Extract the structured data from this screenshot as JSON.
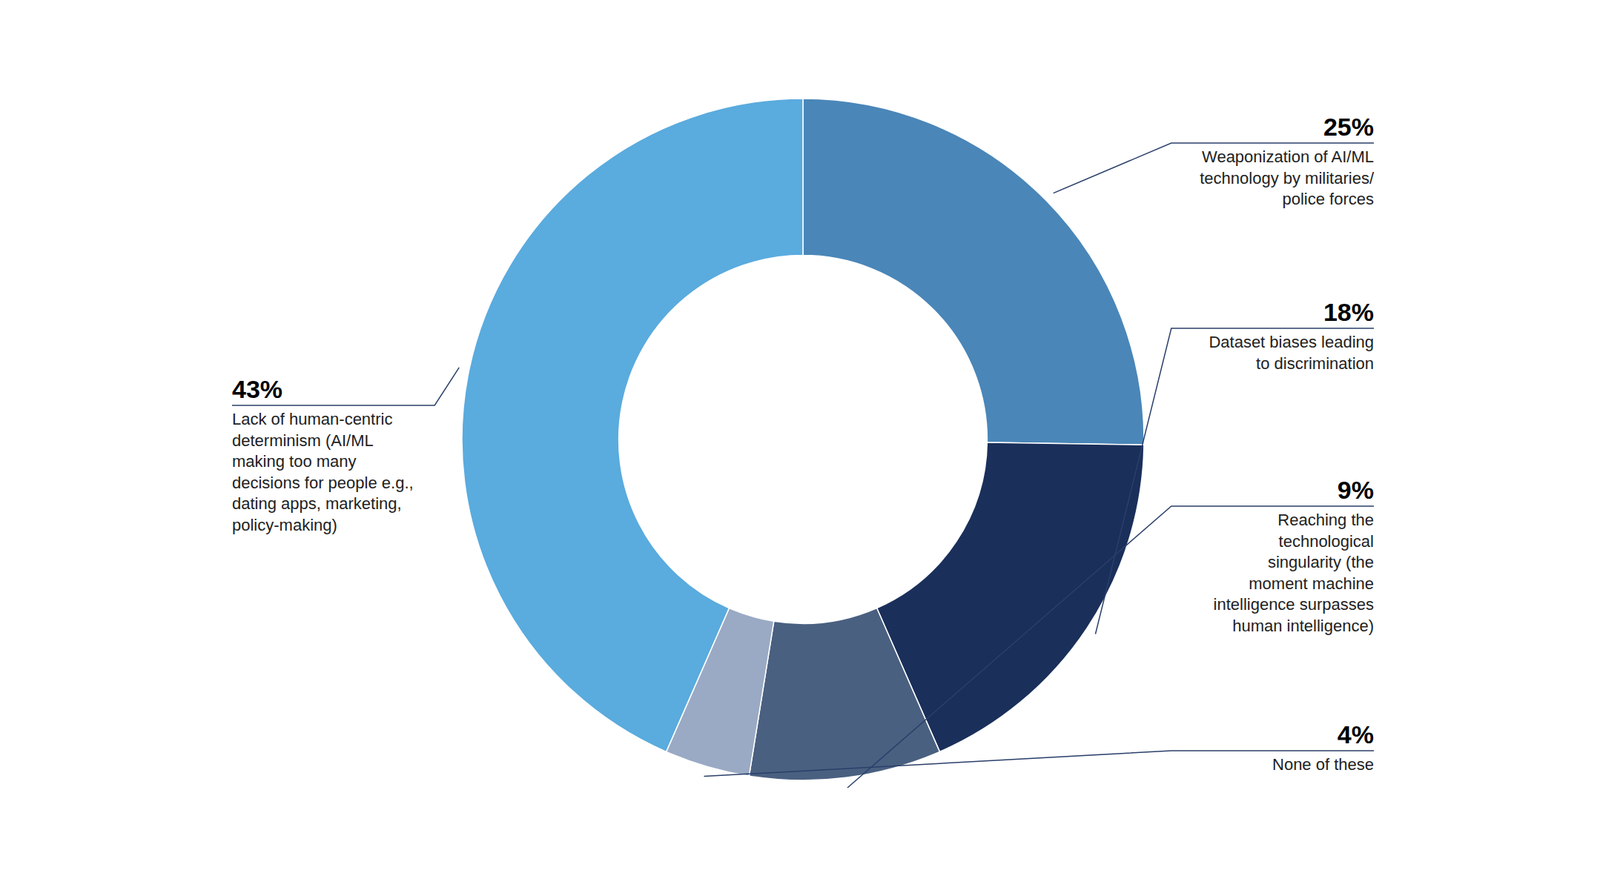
{
  "chart_data": {
    "type": "donut",
    "categories": [
      "Weaponization of AI/ML\ntechnology by militaries/\npolice forces",
      "Dataset biases leading\nto discrimination",
      "Reaching the\ntechnological\nsingularity (the\nmoment machine\nintelligence surpasses\nhuman intelligence)",
      "None of these",
      "Lack of human-centric\ndeterminism (AI/ML\nmaking too many\ndecisions for people e.g.,\ndating apps, marketing,\npolicy-making)"
    ],
    "values": [
      25,
      18,
      9,
      4,
      43
    ],
    "value_labels": [
      "25%",
      "18%",
      "9%",
      "4%",
      "43%"
    ],
    "colors": [
      "#4a86b8",
      "#1a2f5a",
      "#4a6080",
      "#9aaac4",
      "#5aabde"
    ],
    "data_labels": true
  }
}
